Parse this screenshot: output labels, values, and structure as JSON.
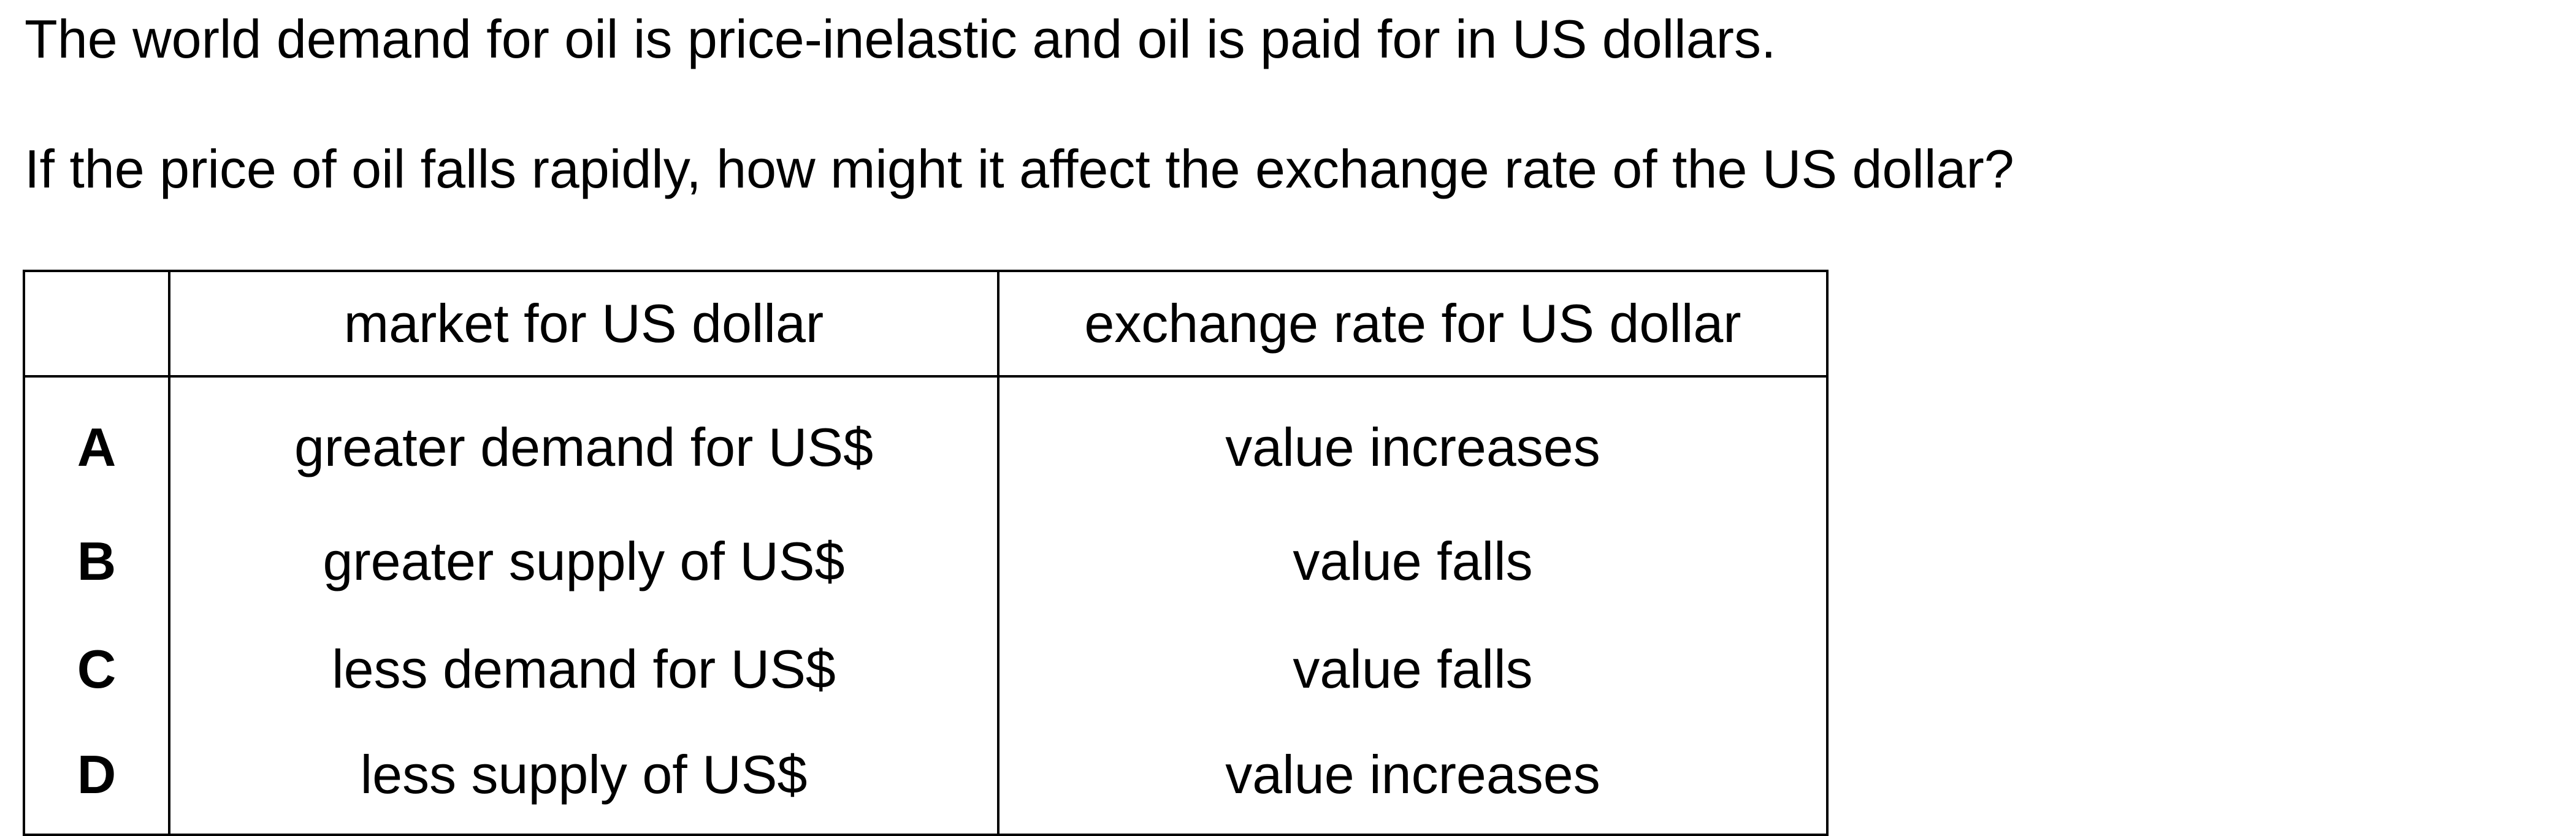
{
  "question": {
    "stem": "The world demand for oil is price-inelastic and oil is paid for in US dollars.",
    "prompt": "If the price of oil falls rapidly, how might it affect the exchange rate of the US dollar?"
  },
  "table": {
    "headers": [
      "",
      "market for US dollar",
      "exchange rate for US dollar"
    ],
    "rows": [
      {
        "letter": "A",
        "market": "greater demand for US$",
        "rate": "value increases"
      },
      {
        "letter": "B",
        "market": "greater supply of US$",
        "rate": "value falls"
      },
      {
        "letter": "C",
        "market": "less demand for US$",
        "rate": "value falls"
      },
      {
        "letter": "D",
        "market": "less supply of US$",
        "rate": "value increases"
      }
    ]
  }
}
